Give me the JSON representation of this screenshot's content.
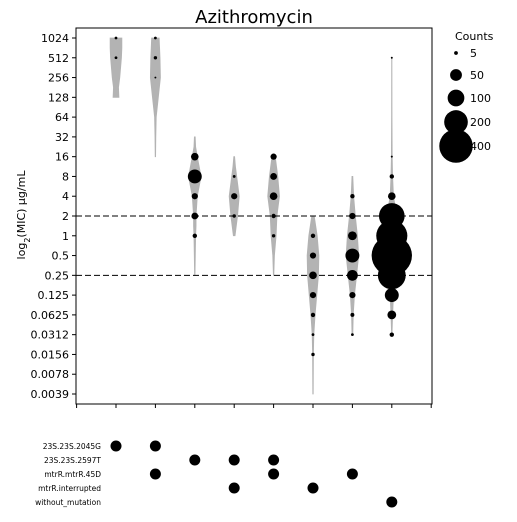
{
  "chart_data": {
    "type": "violin",
    "title": "Azithromycin",
    "ylabel_main": "log",
    "ylabel_sub": "2",
    "ylabel_rest": "(MIC) μg/mL",
    "y_ticks": [
      "1024",
      "512",
      "256",
      "128",
      "64",
      "32",
      "16",
      "8",
      "4",
      "2",
      "1",
      "0.5",
      "0.25",
      "0.125",
      "0.0625",
      "0.0312",
      "0.0156",
      "0.0078",
      "0.0039"
    ],
    "y_log2_range": [
      -8,
      10
    ],
    "thresholds_log2": [
      1,
      -2
    ],
    "colors": {
      "violin": "#b3b3b3",
      "dot": "#000000",
      "threshold": "#000000"
    },
    "groups": [
      {
        "range": [
          7,
          10
        ],
        "medians": [
          9.3
        ],
        "shape": [
          [
            7,
            7
          ],
          [
            7.5,
            6
          ],
          [
            8,
            9
          ],
          [
            9,
            13
          ],
          [
            9.5,
            14
          ],
          [
            10,
            14
          ]
        ],
        "points": [
          {
            "y": 10,
            "count": 2
          },
          {
            "y": 9,
            "count": 2
          }
        ]
      },
      {
        "range": [
          4,
          10
        ],
        "medians": [
          8.6
        ],
        "shape": [
          [
            4,
            0.5
          ],
          [
            5,
            1
          ],
          [
            6,
            2
          ],
          [
            7,
            7
          ],
          [
            8,
            12
          ],
          [
            9,
            11
          ],
          [
            9.5,
            10
          ],
          [
            10,
            9
          ]
        ],
        "points": [
          {
            "y": 10,
            "count": 2
          },
          {
            "y": 9,
            "count": 3
          },
          {
            "y": 8,
            "count": 1
          }
        ]
      },
      {
        "range": [
          -2,
          5
        ],
        "medians": [
          3
        ],
        "shape": [
          [
            -2,
            0.5
          ],
          [
            0,
            2
          ],
          [
            0.5,
            3
          ],
          [
            1,
            3
          ],
          [
            2,
            6
          ],
          [
            3,
            15
          ],
          [
            4,
            6
          ],
          [
            4.5,
            2
          ],
          [
            5,
            1
          ]
        ],
        "points": [
          {
            "y": 4,
            "count": 15
          },
          {
            "y": 3,
            "count": 50
          },
          {
            "y": 2,
            "count": 10
          },
          {
            "y": 1,
            "count": 12
          },
          {
            "y": 0,
            "count": 5
          }
        ]
      },
      {
        "range": [
          0,
          4
        ],
        "medians": [
          2
        ],
        "shape": [
          [
            0,
            2
          ],
          [
            1,
            8
          ],
          [
            2,
            12
          ],
          [
            3,
            6
          ],
          [
            3.5,
            3
          ],
          [
            4,
            1
          ]
        ],
        "points": [
          {
            "y": 3,
            "count": 2
          },
          {
            "y": 2,
            "count": 10
          },
          {
            "y": 1,
            "count": 3
          }
        ]
      },
      {
        "range": [
          -2,
          4
        ],
        "medians": [
          2
        ],
        "shape": [
          [
            -2,
            0.5
          ],
          [
            -1,
            2
          ],
          [
            0,
            6
          ],
          [
            1,
            8
          ],
          [
            2,
            14
          ],
          [
            3,
            10
          ],
          [
            4,
            4
          ]
        ],
        "points": [
          {
            "y": 4,
            "count": 10
          },
          {
            "y": 3,
            "count": 12
          },
          {
            "y": 2,
            "count": 15
          },
          {
            "y": 1,
            "count": 5
          },
          {
            "y": 0,
            "count": 3
          }
        ]
      },
      {
        "range": [
          -8,
          1
        ],
        "medians": [
          -2
        ],
        "shape": [
          [
            -8,
            0.5
          ],
          [
            -6,
            1
          ],
          [
            -5,
            2
          ],
          [
            -4,
            5
          ],
          [
            -3,
            9
          ],
          [
            -2,
            13
          ],
          [
            -1,
            14
          ],
          [
            0,
            10
          ],
          [
            1,
            3
          ]
        ],
        "points": [
          {
            "y": 0,
            "count": 5
          },
          {
            "y": -1,
            "count": 10
          },
          {
            "y": -2,
            "count": 15
          },
          {
            "y": -3,
            "count": 10
          },
          {
            "y": -4,
            "count": 5
          },
          {
            "y": -5,
            "count": 2
          },
          {
            "y": -6,
            "count": 3
          }
        ]
      },
      {
        "range": [
          -5,
          3
        ],
        "medians": [
          -1
        ],
        "shape": [
          [
            -5,
            1
          ],
          [
            -4,
            2
          ],
          [
            -3,
            5
          ],
          [
            -2,
            10
          ],
          [
            -1,
            15
          ],
          [
            0,
            12
          ],
          [
            1,
            7
          ],
          [
            2,
            3
          ],
          [
            3,
            1
          ]
        ],
        "points": [
          {
            "y": 2,
            "count": 5
          },
          {
            "y": 1,
            "count": 10
          },
          {
            "y": 0,
            "count": 20
          },
          {
            "y": -1,
            "count": 50
          },
          {
            "y": -2,
            "count": 30
          },
          {
            "y": -3,
            "count": 10
          },
          {
            "y": -4,
            "count": 4
          },
          {
            "y": -5,
            "count": 2
          }
        ]
      },
      {
        "range": [
          -5,
          9
        ],
        "medians": [
          -1
        ],
        "shape": [
          [
            -5,
            0.5
          ],
          [
            -4,
            2
          ],
          [
            -3,
            4
          ],
          [
            -2,
            9
          ],
          [
            -1,
            15
          ],
          [
            0,
            17
          ],
          [
            1,
            12
          ],
          [
            2,
            4
          ],
          [
            3,
            2
          ],
          [
            4,
            1
          ],
          [
            6,
            0.5
          ],
          [
            9,
            0.3
          ]
        ],
        "points": [
          {
            "y": 9,
            "count": 1
          },
          {
            "y": 4,
            "count": 1
          },
          {
            "y": 3,
            "count": 5
          },
          {
            "y": 2,
            "count": 15
          },
          {
            "y": 1,
            "count": 170
          },
          {
            "y": 0,
            "count": 250
          },
          {
            "y": -1,
            "count": 420
          },
          {
            "y": -2,
            "count": 200
          },
          {
            "y": -3,
            "count": 50
          },
          {
            "y": -4,
            "count": 20
          },
          {
            "y": -5,
            "count": 5
          }
        ]
      }
    ],
    "mutations": [
      {
        "label": "23S.23S.2045G",
        "present": [
          0,
          1
        ]
      },
      {
        "label": "23S.23S.2597T",
        "present": [
          2,
          3,
          4
        ]
      },
      {
        "label": "mtrR.mtrR.45D",
        "present": [
          1,
          4,
          6
        ]
      },
      {
        "label": "mtrR.interrupted",
        "present": [
          3,
          5
        ]
      },
      {
        "label": "without_mutation",
        "present": [
          7
        ]
      }
    ],
    "legend": {
      "title": "Counts",
      "entries": [
        {
          "label": "5",
          "value": 5
        },
        {
          "label": "50",
          "value": 50
        },
        {
          "label": "100",
          "value": 100
        },
        {
          "label": "200",
          "value": 200
        },
        {
          "label": "400",
          "value": 400
        }
      ]
    }
  }
}
